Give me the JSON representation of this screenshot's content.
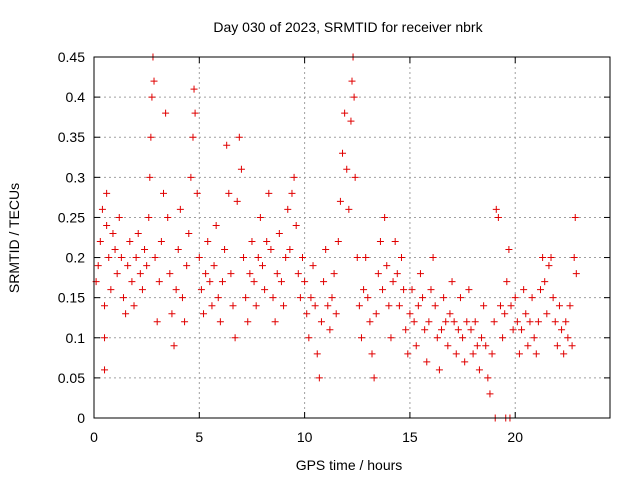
{
  "chart_data": {
    "type": "scatter",
    "title": "Day 030 of 2023, SRMTID for receiver nbrk",
    "xlabel": "GPS time / hours",
    "ylabel": "SRMTID / TECUs",
    "xlim": [
      0,
      24.5
    ],
    "ylim": [
      0,
      0.45
    ],
    "x_ticks": [
      0,
      5,
      10,
      15,
      20
    ],
    "x_tick_labels": [
      "0",
      "5",
      "10",
      "15",
      "20"
    ],
    "y_ticks": [
      0,
      0.05,
      0.1,
      0.15,
      0.2,
      0.25,
      0.3,
      0.35,
      0.4,
      0.45
    ],
    "y_tick_labels": [
      "0",
      "0.05",
      "0.1",
      "0.15",
      "0.2",
      "0.25",
      "0.3",
      "0.35",
      "0.4",
      "0.45"
    ],
    "grid": true,
    "marker": "plus",
    "color": "#e00000",
    "series": [
      {
        "name": "SRMTID",
        "points": [
          [
            0.1,
            0.17
          ],
          [
            0.2,
            0.19
          ],
          [
            0.3,
            0.22
          ],
          [
            0.4,
            0.26
          ],
          [
            0.5,
            0.14
          ],
          [
            0.5,
            0.1
          ],
          [
            0.5,
            0.06
          ],
          [
            0.6,
            0.24
          ],
          [
            0.6,
            0.28
          ],
          [
            0.7,
            0.2
          ],
          [
            0.8,
            0.16
          ],
          [
            0.9,
            0.23
          ],
          [
            1.0,
            0.21
          ],
          [
            1.1,
            0.18
          ],
          [
            1.2,
            0.25
          ],
          [
            1.3,
            0.2
          ],
          [
            1.4,
            0.15
          ],
          [
            1.5,
            0.13
          ],
          [
            1.6,
            0.19
          ],
          [
            1.7,
            0.22
          ],
          [
            1.8,
            0.17
          ],
          [
            1.9,
            0.14
          ],
          [
            2.0,
            0.2
          ],
          [
            2.1,
            0.23
          ],
          [
            2.2,
            0.18
          ],
          [
            2.3,
            0.16
          ],
          [
            2.4,
            0.21
          ],
          [
            2.5,
            0.19
          ],
          [
            2.6,
            0.25
          ],
          [
            2.65,
            0.3
          ],
          [
            2.7,
            0.35
          ],
          [
            2.75,
            0.4
          ],
          [
            2.8,
            0.45
          ],
          [
            2.85,
            0.42
          ],
          [
            2.9,
            0.2
          ],
          [
            3.0,
            0.12
          ],
          [
            3.1,
            0.17
          ],
          [
            3.2,
            0.22
          ],
          [
            3.3,
            0.28
          ],
          [
            3.4,
            0.38
          ],
          [
            3.5,
            0.25
          ],
          [
            3.6,
            0.18
          ],
          [
            3.7,
            0.13
          ],
          [
            3.8,
            0.09
          ],
          [
            3.9,
            0.16
          ],
          [
            4.0,
            0.21
          ],
          [
            4.1,
            0.26
          ],
          [
            4.2,
            0.15
          ],
          [
            4.3,
            0.12
          ],
          [
            4.4,
            0.19
          ],
          [
            4.5,
            0.23
          ],
          [
            4.6,
            0.3
          ],
          [
            4.7,
            0.35
          ],
          [
            4.75,
            0.41
          ],
          [
            4.8,
            0.38
          ],
          [
            4.9,
            0.28
          ],
          [
            5.0,
            0.2
          ],
          [
            5.1,
            0.16
          ],
          [
            5.2,
            0.13
          ],
          [
            5.3,
            0.18
          ],
          [
            5.4,
            0.22
          ],
          [
            5.5,
            0.17
          ],
          [
            5.6,
            0.14
          ],
          [
            5.7,
            0.19
          ],
          [
            5.8,
            0.24
          ],
          [
            5.9,
            0.15
          ],
          [
            6.0,
            0.12
          ],
          [
            6.1,
            0.17
          ],
          [
            6.2,
            0.21
          ],
          [
            6.3,
            0.34
          ],
          [
            6.4,
            0.28
          ],
          [
            6.5,
            0.18
          ],
          [
            6.6,
            0.14
          ],
          [
            6.7,
            0.1
          ],
          [
            6.8,
            0.27
          ],
          [
            6.9,
            0.35
          ],
          [
            7.0,
            0.31
          ],
          [
            7.1,
            0.2
          ],
          [
            7.2,
            0.15
          ],
          [
            7.3,
            0.12
          ],
          [
            7.4,
            0.18
          ],
          [
            7.5,
            0.22
          ],
          [
            7.6,
            0.17
          ],
          [
            7.7,
            0.14
          ],
          [
            7.8,
            0.2
          ],
          [
            7.9,
            0.25
          ],
          [
            8.0,
            0.19
          ],
          [
            8.1,
            0.16
          ],
          [
            8.2,
            0.22
          ],
          [
            8.3,
            0.28
          ],
          [
            8.4,
            0.21
          ],
          [
            8.5,
            0.15
          ],
          [
            8.6,
            0.12
          ],
          [
            8.7,
            0.18
          ],
          [
            8.8,
            0.23
          ],
          [
            8.9,
            0.17
          ],
          [
            9.0,
            0.14
          ],
          [
            9.1,
            0.2
          ],
          [
            9.2,
            0.26
          ],
          [
            9.3,
            0.21
          ],
          [
            9.4,
            0.28
          ],
          [
            9.5,
            0.3
          ],
          [
            9.6,
            0.24
          ],
          [
            9.7,
            0.18
          ],
          [
            9.8,
            0.15
          ],
          [
            9.9,
            0.2
          ],
          [
            10.0,
            0.17
          ],
          [
            10.1,
            0.13
          ],
          [
            10.2,
            0.1
          ],
          [
            10.3,
            0.15
          ],
          [
            10.4,
            0.19
          ],
          [
            10.5,
            0.14
          ],
          [
            10.6,
            0.08
          ],
          [
            10.7,
            0.05
          ],
          [
            10.8,
            0.12
          ],
          [
            10.9,
            0.17
          ],
          [
            11.0,
            0.21
          ],
          [
            11.1,
            0.14
          ],
          [
            11.2,
            0.11
          ],
          [
            11.3,
            0.15
          ],
          [
            11.4,
            0.18
          ],
          [
            11.5,
            0.13
          ],
          [
            11.6,
            0.22
          ],
          [
            11.7,
            0.27
          ],
          [
            11.8,
            0.33
          ],
          [
            11.9,
            0.38
          ],
          [
            12.0,
            0.31
          ],
          [
            12.1,
            0.26
          ],
          [
            12.2,
            0.37
          ],
          [
            12.25,
            0.42
          ],
          [
            12.3,
            0.45
          ],
          [
            12.35,
            0.4
          ],
          [
            12.4,
            0.3
          ],
          [
            12.5,
            0.2
          ],
          [
            12.6,
            0.14
          ],
          [
            12.7,
            0.1
          ],
          [
            12.8,
            0.16
          ],
          [
            12.9,
            0.2
          ],
          [
            13.0,
            0.15
          ],
          [
            13.1,
            0.12
          ],
          [
            13.2,
            0.08
          ],
          [
            13.3,
            0.05
          ],
          [
            13.4,
            0.13
          ],
          [
            13.5,
            0.18
          ],
          [
            13.6,
            0.22
          ],
          [
            13.7,
            0.16
          ],
          [
            13.8,
            0.25
          ],
          [
            13.9,
            0.19
          ],
          [
            14.0,
            0.14
          ],
          [
            14.1,
            0.1
          ],
          [
            14.2,
            0.17
          ],
          [
            14.3,
            0.22
          ],
          [
            14.4,
            0.18
          ],
          [
            14.5,
            0.14
          ],
          [
            14.6,
            0.2
          ],
          [
            14.7,
            0.16
          ],
          [
            14.8,
            0.11
          ],
          [
            14.9,
            0.08
          ],
          [
            15.0,
            0.13
          ],
          [
            15.1,
            0.16
          ],
          [
            15.2,
            0.12
          ],
          [
            15.3,
            0.09
          ],
          [
            15.4,
            0.14
          ],
          [
            15.5,
            0.18
          ],
          [
            15.6,
            0.15
          ],
          [
            15.7,
            0.11
          ],
          [
            15.8,
            0.07
          ],
          [
            15.9,
            0.12
          ],
          [
            16.0,
            0.16
          ],
          [
            16.1,
            0.2
          ],
          [
            16.2,
            0.14
          ],
          [
            16.3,
            0.1
          ],
          [
            16.4,
            0.06
          ],
          [
            16.5,
            0.11
          ],
          [
            16.6,
            0.15
          ],
          [
            16.7,
            0.12
          ],
          [
            16.8,
            0.09
          ],
          [
            16.9,
            0.13
          ],
          [
            17.0,
            0.17
          ],
          [
            17.1,
            0.12
          ],
          [
            17.2,
            0.08
          ],
          [
            17.3,
            0.11
          ],
          [
            17.4,
            0.15
          ],
          [
            17.5,
            0.1
          ],
          [
            17.6,
            0.07
          ],
          [
            17.7,
            0.12
          ],
          [
            17.8,
            0.16
          ],
          [
            17.9,
            0.11
          ],
          [
            18.0,
            0.08
          ],
          [
            18.1,
            0.12
          ],
          [
            18.2,
            0.09
          ],
          [
            18.3,
            0.06
          ],
          [
            18.4,
            0.1
          ],
          [
            18.5,
            0.14
          ],
          [
            18.6,
            0.09
          ],
          [
            18.7,
            0.05
          ],
          [
            18.8,
            0.03
          ],
          [
            18.9,
            0.08
          ],
          [
            19.0,
            0.12
          ],
          [
            19.1,
            0.26
          ],
          [
            19.2,
            0.25
          ],
          [
            19.3,
            0.14
          ],
          [
            19.4,
            0.1
          ],
          [
            19.5,
            0.13
          ],
          [
            19.6,
            0.17
          ],
          [
            19.7,
            0.21
          ],
          [
            19.8,
            0.14
          ],
          [
            19.9,
            0.11
          ],
          [
            20.0,
            0.15
          ],
          [
            20.1,
            0.12
          ],
          [
            20.2,
            0.08
          ],
          [
            20.3,
            0.11
          ],
          [
            20.4,
            0.16
          ],
          [
            20.5,
            0.13
          ],
          [
            20.6,
            0.09
          ],
          [
            20.7,
            0.12
          ],
          [
            20.8,
            0.15
          ],
          [
            20.9,
            0.1
          ],
          [
            21.0,
            0.08
          ],
          [
            21.1,
            0.12
          ],
          [
            21.2,
            0.16
          ],
          [
            21.3,
            0.2
          ],
          [
            21.4,
            0.17
          ],
          [
            21.5,
            0.13
          ],
          [
            21.6,
            0.19
          ],
          [
            21.7,
            0.2
          ],
          [
            21.8,
            0.15
          ],
          [
            21.9,
            0.12
          ],
          [
            22.0,
            0.09
          ],
          [
            22.1,
            0.14
          ],
          [
            22.2,
            0.11
          ],
          [
            22.3,
            0.08
          ],
          [
            22.4,
            0.12
          ],
          [
            22.5,
            0.1
          ],
          [
            22.6,
            0.14
          ],
          [
            22.7,
            0.09
          ],
          [
            22.8,
            0.2
          ],
          [
            22.85,
            0.25
          ],
          [
            22.9,
            0.18
          ],
          [
            19.05,
            0.0
          ],
          [
            19.55,
            0.0
          ],
          [
            19.75,
            0.0
          ]
        ]
      }
    ]
  }
}
